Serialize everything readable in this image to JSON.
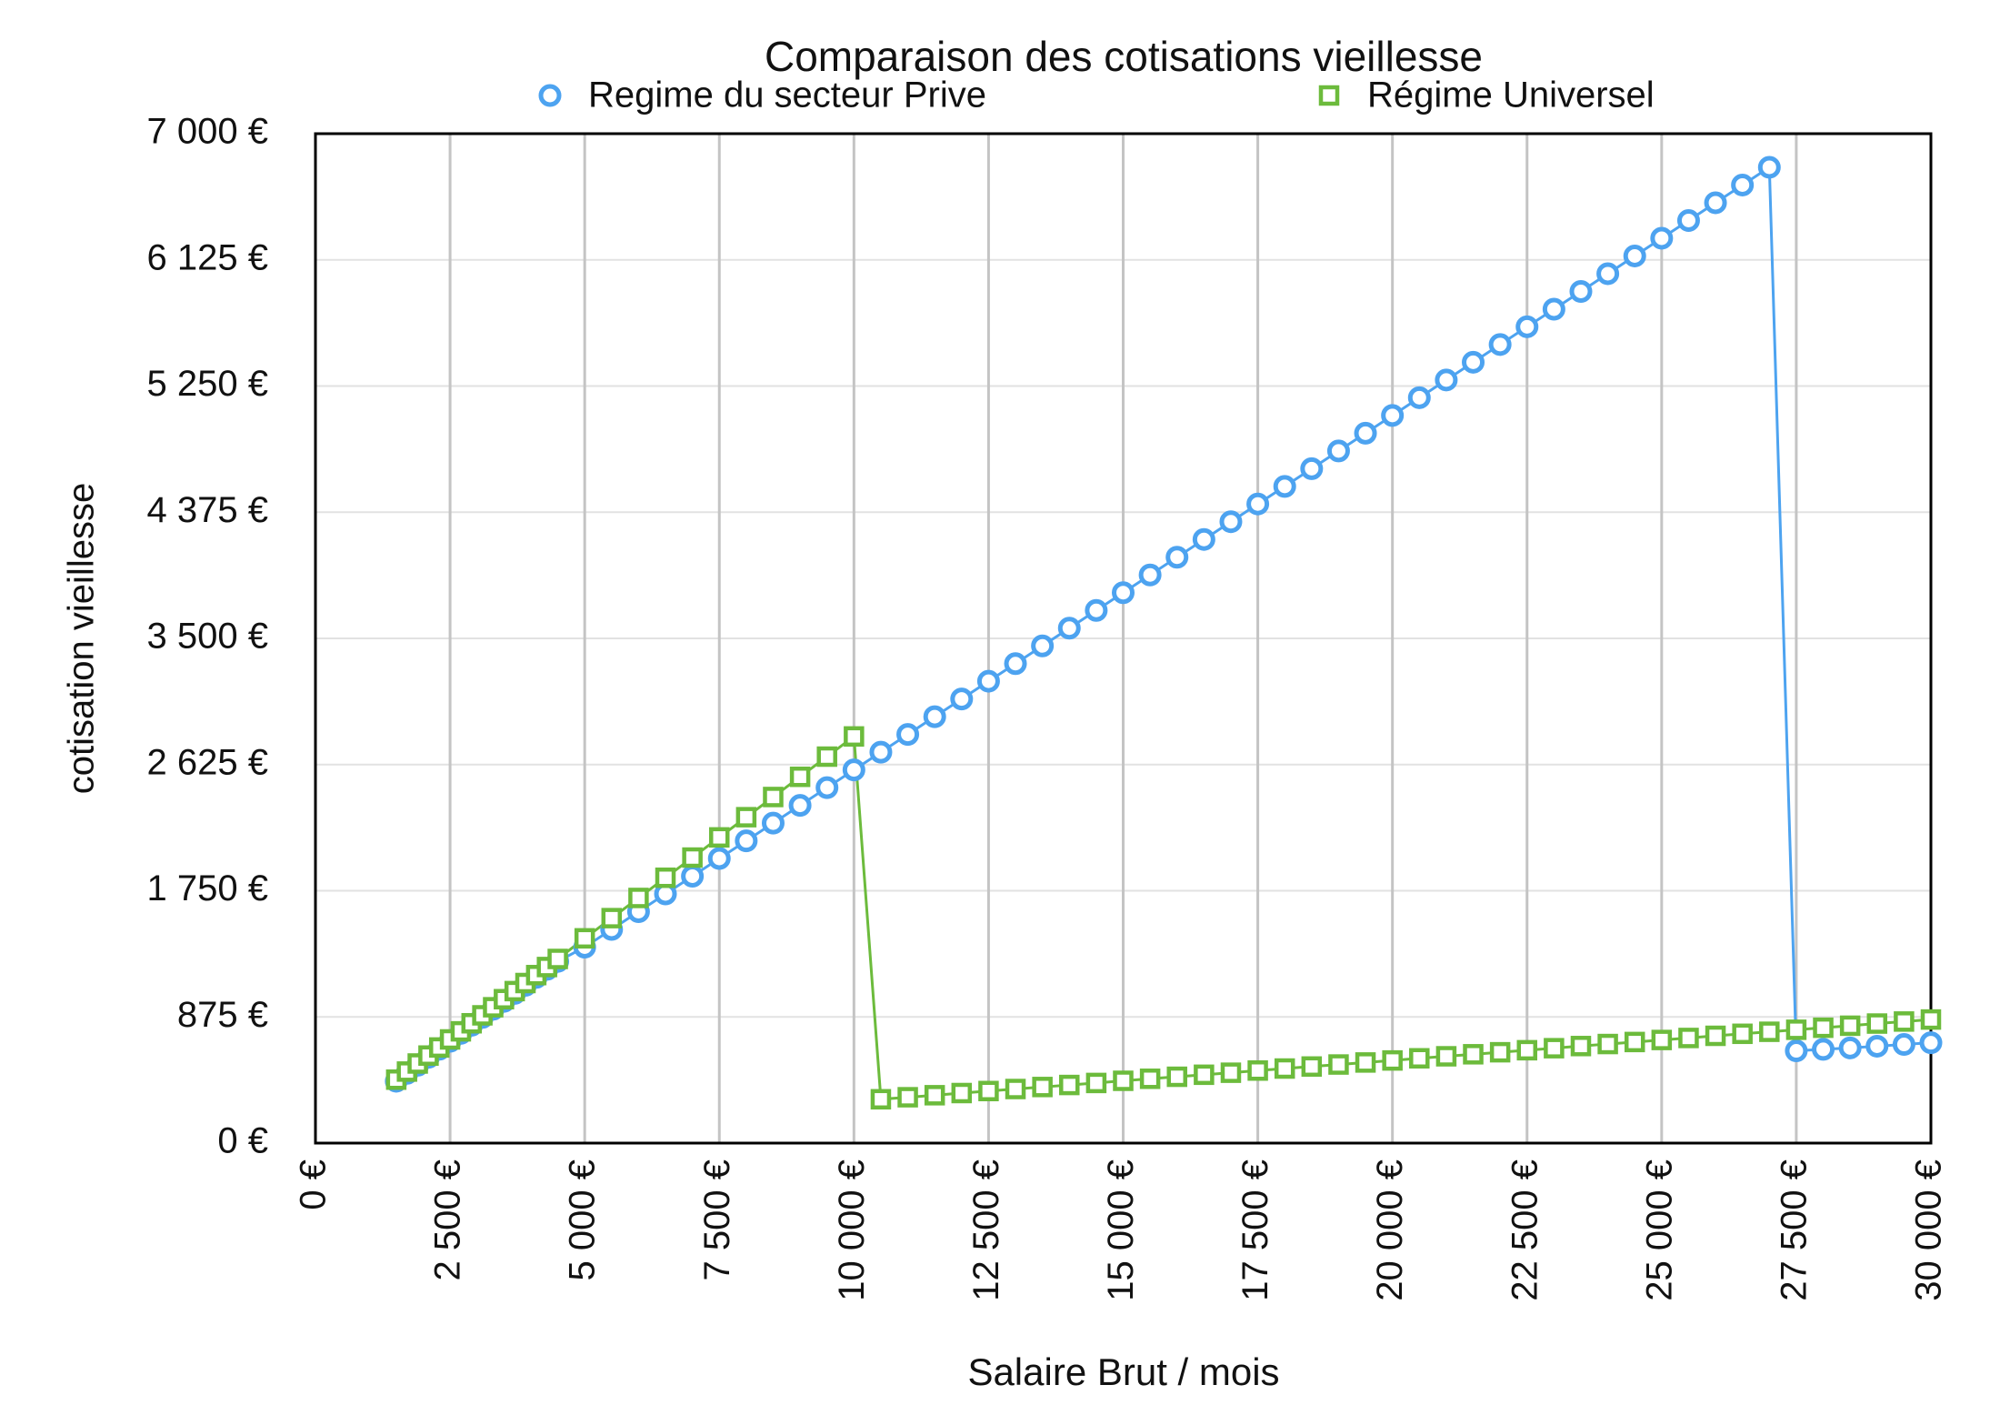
{
  "chart_data": {
    "type": "line",
    "title": "Comparaison des cotisations vieillesse",
    "x_label": "Salaire Brut / mois",
    "y_label": "cotisation vieillesse",
    "x": [
      1500,
      1700,
      1900,
      2100,
      2300,
      2500,
      2700,
      2900,
      3100,
      3300,
      3500,
      3700,
      3900,
      4100,
      4300,
      4500,
      5000,
      5500,
      6000,
      6500,
      7000,
      7500,
      8000,
      8500,
      9000,
      9500,
      10000,
      10500,
      11000,
      11500,
      12000,
      12500,
      13000,
      13500,
      14000,
      14500,
      15000,
      15500,
      16000,
      16500,
      17000,
      17500,
      18000,
      18500,
      19000,
      19500,
      20000,
      20500,
      21000,
      21500,
      22000,
      22500,
      23000,
      23500,
      24000,
      24500,
      25000,
      25500,
      26000,
      26500,
      27000,
      27500,
      28000,
      28500,
      29000,
      29500,
      30000
    ],
    "series": [
      {
        "name": "Regime du secteur Prive",
        "color": "#4da3f0",
        "marker": "circle",
        "values": [
          429,
          484,
          540,
          595,
          651,
          706,
          761,
          817,
          872,
          928,
          983,
          1038,
          1094,
          1149,
          1205,
          1260,
          1359,
          1482,
          1605,
          1728,
          1851,
          1974,
          2096,
          2219,
          2342,
          2465,
          2588,
          2711,
          2834,
          2957,
          3080,
          3203,
          3325,
          3448,
          3571,
          3694,
          3817,
          3940,
          4063,
          4186,
          4309,
          4432,
          4554,
          4677,
          4800,
          4923,
          5046,
          5169,
          5292,
          5415,
          5538,
          5661,
          5783,
          5906,
          6029,
          6152,
          6275,
          6398,
          6521,
          6644,
          6767,
          640,
          650,
          660,
          672,
          684,
          696
        ]
      },
      {
        "name": "Régime Universel",
        "color": "#6cbb3c",
        "marker": "square",
        "values": [
          440,
          496,
          552,
          607,
          663,
          719,
          775,
          831,
          886,
          942,
          998,
          1054,
          1110,
          1165,
          1221,
          1277,
          1420,
          1560,
          1700,
          1840,
          1980,
          2120,
          2260,
          2400,
          2540,
          2680,
          2820,
          304,
          318,
          332,
          347,
          361,
          375,
          389,
          403,
          417,
          432,
          446,
          460,
          474,
          488,
          503,
          517,
          531,
          545,
          559,
          573,
          588,
          602,
          616,
          630,
          644,
          658,
          673,
          687,
          701,
          715,
          729,
          744,
          758,
          772,
          786,
          800,
          814,
          829,
          843,
          857
        ]
      }
    ],
    "xlim": [
      0,
      30000
    ],
    "xticks": [
      {
        "value": 0,
        "label": "0 €"
      },
      {
        "value": 2500,
        "label": "2 500 €"
      },
      {
        "value": 5000,
        "label": "5 000 €"
      },
      {
        "value": 7500,
        "label": "7 500 €"
      },
      {
        "value": 10000,
        "label": "10 000 €"
      },
      {
        "value": 12500,
        "label": "12 500 €"
      },
      {
        "value": 15000,
        "label": "15 000 €"
      },
      {
        "value": 17500,
        "label": "17 500 €"
      },
      {
        "value": 20000,
        "label": "20 000 €"
      },
      {
        "value": 22500,
        "label": "22 500 €"
      },
      {
        "value": 25000,
        "label": "25 000 €"
      },
      {
        "value": 27500,
        "label": "27 500 €"
      },
      {
        "value": 30000,
        "label": "30 000 €"
      }
    ],
    "ylim": [
      0,
      7000
    ],
    "yticks": [
      {
        "value": 0,
        "label": "0 €"
      },
      {
        "value": 875,
        "label": "875 €"
      },
      {
        "value": 1750,
        "label": "1 750 €"
      },
      {
        "value": 2625,
        "label": "2 625 €"
      },
      {
        "value": 3500,
        "label": "3 500 €"
      },
      {
        "value": 4375,
        "label": "4 375 €"
      },
      {
        "value": 5250,
        "label": "5 250 €"
      },
      {
        "value": 6125,
        "label": "6 125 €"
      },
      {
        "value": 7000,
        "label": "7 000 €"
      }
    ],
    "grid": true
  }
}
